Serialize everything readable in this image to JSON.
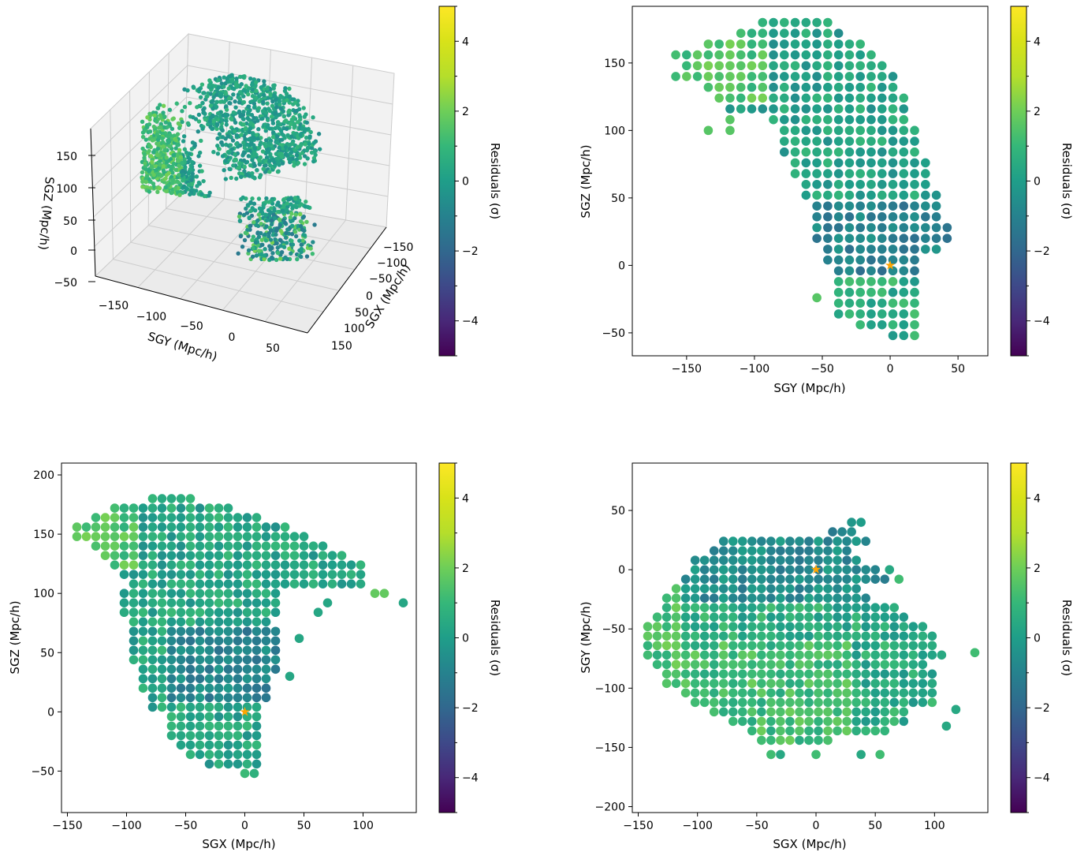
{
  "colors": {
    "star": "#ffa500",
    "axis": "#000000",
    "pane": "#f2f2f2",
    "grid": "#cccccc"
  },
  "colormap": "viridis",
  "chart_data": [
    {
      "id": "panel-3d",
      "type": "scatter",
      "projection": "3d",
      "title": "",
      "xlabel": "SGX (Mpc/h)",
      "ylabel": "SGY (Mpc/h)",
      "zlabel": "SGZ (Mpc/h)",
      "xticks": [
        "−150",
        "−100",
        "−50",
        "0",
        "50",
        "100",
        "150"
      ],
      "yticks": [
        "−150",
        "−100",
        "−50",
        "0",
        "50"
      ],
      "zticks": [
        "−50",
        "0",
        "50",
        "100",
        "150"
      ],
      "colorbar": {
        "label": "Residuals (σ)",
        "range": [
          -5,
          5
        ],
        "ticks": [
          "4",
          "2",
          "0",
          "−2",
          "−4"
        ]
      },
      "points": "dense 3D cloud of residual-colored points (values approx -2 to 3)"
    },
    {
      "id": "panel-sgy-sgz",
      "type": "scatter",
      "title": "",
      "xlabel": "SGY (Mpc/h)",
      "ylabel": "SGZ (Mpc/h)",
      "xlim": [
        -190,
        72
      ],
      "ylim": [
        -67,
        192
      ],
      "xticks": [
        "−150",
        "−100",
        "−50",
        "0",
        "50"
      ],
      "yticks": [
        "−50",
        "0",
        "50",
        "100",
        "150"
      ],
      "colorbar": {
        "label": "Residuals (σ)",
        "range": [
          -5,
          5
        ],
        "ticks": [
          "4",
          "2",
          "0",
          "−2",
          "−4"
        ]
      },
      "marker_star": [
        0,
        0
      ],
      "grid_step": 8
    },
    {
      "id": "panel-sgx-sgz",
      "type": "scatter",
      "title": "",
      "xlabel": "SGX (Mpc/h)",
      "ylabel": "SGZ (Mpc/h)",
      "xlim": [
        -155,
        145
      ],
      "ylim": [
        -85,
        210
      ],
      "xticks": [
        "−150",
        "−100",
        "−50",
        "0",
        "50",
        "100"
      ],
      "yticks": [
        "−50",
        "0",
        "50",
        "100",
        "150",
        "200"
      ],
      "colorbar": {
        "label": "Residuals (σ)",
        "range": [
          -5,
          5
        ],
        "ticks": [
          "4",
          "2",
          "0",
          "−2",
          "−4"
        ]
      },
      "marker_star": [
        0,
        0
      ],
      "grid_step": 8
    },
    {
      "id": "panel-sgx-sgy",
      "type": "scatter",
      "title": "",
      "xlabel": "SGX (Mpc/h)",
      "ylabel": "SGY (Mpc/h)",
      "xlim": [
        -155,
        145
      ],
      "ylim": [
        -205,
        90
      ],
      "xticks": [
        "−150",
        "−100",
        "−50",
        "0",
        "50",
        "100"
      ],
      "yticks": [
        "−200",
        "−150",
        "−100",
        "−50",
        "0",
        "50"
      ],
      "colorbar": {
        "label": "Residuals (σ)",
        "range": [
          -5,
          5
        ],
        "ticks": [
          "4",
          "2",
          "0",
          "−2",
          "−4"
        ]
      },
      "marker_star": [
        0,
        0
      ],
      "grid_step": 8
    }
  ]
}
